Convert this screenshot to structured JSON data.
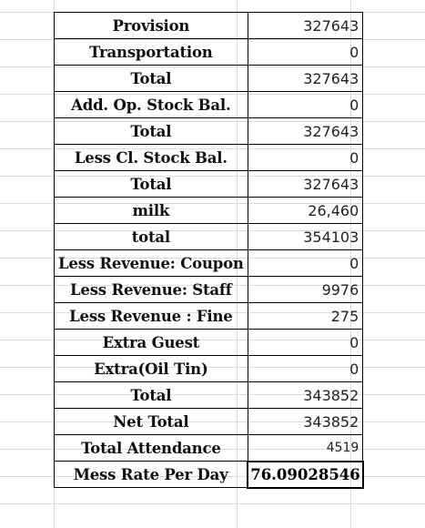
{
  "sheet": {
    "rows": [
      {
        "label": "Provision",
        "value": "327643"
      },
      {
        "label": "Transportation",
        "value": "0"
      },
      {
        "label": "Total",
        "value": "327643"
      },
      {
        "label": "Add. Op. Stock Bal.",
        "value": "0"
      },
      {
        "label": "Total",
        "value": "327643"
      },
      {
        "label": "Less Cl. Stock Bal.",
        "value": "0"
      },
      {
        "label": "Total",
        "value": "327643"
      },
      {
        "label": "milk",
        "value": "26,460"
      },
      {
        "label": "total",
        "value": "354103"
      },
      {
        "label": "Less Revenue: Coupon",
        "value": "0"
      },
      {
        "label": "Less Revenue: Staff",
        "value": "9976"
      },
      {
        "label": "Less Revenue : Fine",
        "value": "275"
      },
      {
        "label": "Extra Guest",
        "value": "0"
      },
      {
        "label": "Extra(Oil Tin)",
        "value": "0"
      },
      {
        "label": "Total",
        "value": "343852"
      },
      {
        "label": "Net Total",
        "value": "343852"
      },
      {
        "label": "Total Attendance",
        "value": "4519"
      },
      {
        "label": "Mess Rate Per Day",
        "value": "76.09028546"
      }
    ]
  }
}
